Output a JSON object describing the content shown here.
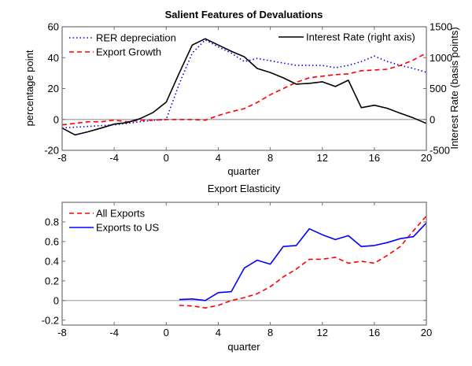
{
  "chart_data": [
    {
      "type": "line",
      "title": "Salient Features of Devaluations",
      "xlabel": "quarter",
      "ylabel": "percentage point",
      "ylabel_right": "Interest Rate (basis points)",
      "xlim": [
        -8,
        20
      ],
      "ylim": [
        -20,
        60
      ],
      "ylim_right": [
        -500,
        1500
      ],
      "xticks": [
        "-8",
        "-4",
        "0",
        "4",
        "8",
        "12",
        "16",
        "20"
      ],
      "xtick_values": [
        -8,
        -4,
        0,
        4,
        8,
        12,
        16,
        20
      ],
      "yticks": [
        "-20",
        "0",
        "20",
        "40",
        "60"
      ],
      "ytick_values": [
        -20,
        0,
        20,
        40,
        60
      ],
      "yticks_right": [
        "-500",
        "0",
        "500",
        "1000",
        "1500"
      ],
      "ytick_values_right": [
        -500,
        0,
        500,
        1000,
        1500
      ],
      "zero_line": true,
      "grid": false,
      "x": [
        -8,
        -7,
        -6,
        -5,
        -4,
        -3,
        -2,
        -1,
        0,
        1,
        2,
        3,
        4,
        5,
        6,
        7,
        8,
        9,
        10,
        11,
        12,
        13,
        14,
        15,
        16,
        17,
        18,
        19,
        20
      ],
      "series": [
        {
          "name": "RER depreciation",
          "axis": "left",
          "style": "dotted",
          "color": "#0000ff",
          "legend_pos": "top-left",
          "values": [
            -5.5,
            -5,
            -4.5,
            -4,
            -3.5,
            -2.5,
            -1.5,
            -0.5,
            0,
            23,
            43,
            51.5,
            47,
            43,
            37.5,
            39.5,
            38,
            36.5,
            35,
            35,
            35,
            33.5,
            35,
            37.5,
            41,
            37.5,
            35,
            33,
            30.5
          ]
        },
        {
          "name": "Export Growth",
          "axis": "left",
          "style": "dashed",
          "color": "#ff0000",
          "legend_pos": "top-left",
          "values": [
            -3.5,
            -2.5,
            -1.5,
            -1.5,
            -0.5,
            -1.5,
            -0.5,
            -0.5,
            0,
            0,
            0,
            -0.5,
            2.5,
            5,
            7,
            11,
            16,
            20,
            24,
            27,
            28,
            29,
            29.5,
            31.5,
            32,
            32.5,
            35,
            38.5,
            43
          ]
        },
        {
          "name": "Interest Rate (right axis)",
          "axis": "right",
          "style": "solid",
          "color": "#000000",
          "legend_pos": "top-right",
          "values": [
            -140,
            -250,
            -200,
            -140,
            -76,
            -50,
            13,
            114,
            280,
            750,
            1205,
            1307,
            1205,
            1104,
            1015,
            825,
            760,
            673,
            571,
            584,
            609,
            533,
            635,
            190,
            230,
            180,
            100,
            25,
            -64
          ]
        }
      ]
    },
    {
      "type": "line",
      "title": "Export Elasticity",
      "xlabel": "quarter",
      "ylabel": "",
      "xlim": [
        -8,
        20
      ],
      "ylim": [
        -0.25,
        1.0
      ],
      "xticks": [
        "-8",
        "-4",
        "0",
        "4",
        "8",
        "12",
        "16",
        "20"
      ],
      "xtick_values": [
        -8,
        -4,
        0,
        4,
        8,
        12,
        16,
        20
      ],
      "yticks": [
        "-0.2",
        "0",
        "0.2",
        "0.4",
        "0.6",
        "0.8"
      ],
      "ytick_values": [
        -0.2,
        0,
        0.2,
        0.4,
        0.6,
        0.8
      ],
      "zero_line": true,
      "grid": false,
      "x": [
        1,
        2,
        3,
        4,
        5,
        6,
        7,
        8,
        9,
        10,
        11,
        12,
        13,
        14,
        15,
        16,
        17,
        18,
        19,
        20
      ],
      "series": [
        {
          "name": "All Exports",
          "style": "dashed",
          "color": "#ff0000",
          "legend_pos": "top-left",
          "values": [
            -0.05,
            -0.055,
            -0.075,
            -0.05,
            0.0,
            0.03,
            0.07,
            0.14,
            0.24,
            0.32,
            0.42,
            0.42,
            0.44,
            0.38,
            0.4,
            0.38,
            0.46,
            0.55,
            0.71,
            0.86
          ]
        },
        {
          "name": "Exports to US",
          "style": "solid",
          "color": "#0000ff",
          "legend_pos": "top-left",
          "values": [
            0.01,
            0.016,
            0.0,
            0.08,
            0.09,
            0.33,
            0.41,
            0.37,
            0.55,
            0.56,
            0.73,
            0.67,
            0.62,
            0.66,
            0.55,
            0.56,
            0.59,
            0.63,
            0.65,
            0.79
          ]
        }
      ]
    }
  ]
}
